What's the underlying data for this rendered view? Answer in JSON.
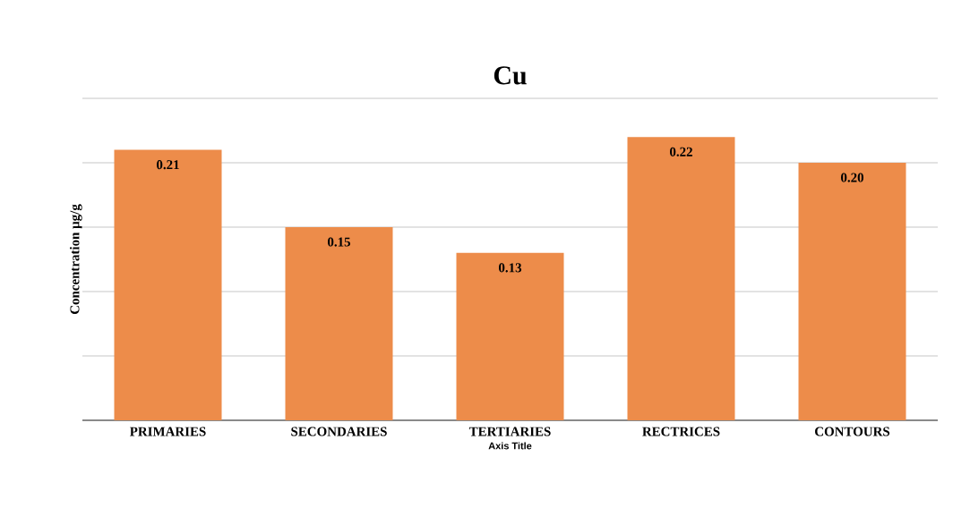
{
  "chart_data": {
    "type": "bar",
    "title": "Cu",
    "ylabel": "Concentration µg/g",
    "xlabel": "Axis Title",
    "categories": [
      "PRIMARIES",
      "SECONDARIES",
      "TERTIARIES",
      "RECTRICES",
      "CONTOURS"
    ],
    "values": [
      0.21,
      0.15,
      0.13,
      0.22,
      0.2
    ],
    "value_labels": [
      "0.21",
      "0.15",
      "0.13",
      "0.22",
      "0.20"
    ],
    "color": "#ed8c4a",
    "ylim": [
      0,
      0.25
    ],
    "yticks": [
      {
        "value": 0,
        "label": null
      },
      {
        "value": 0.05,
        "label": null
      },
      {
        "value": 0.1,
        "label": null
      },
      {
        "value": 0.15,
        "label": null
      },
      {
        "value": 0.2,
        "label": null
      },
      {
        "value": 0.25,
        "label": null
      }
    ],
    "tick_labels": "x",
    "grid": "y"
  }
}
